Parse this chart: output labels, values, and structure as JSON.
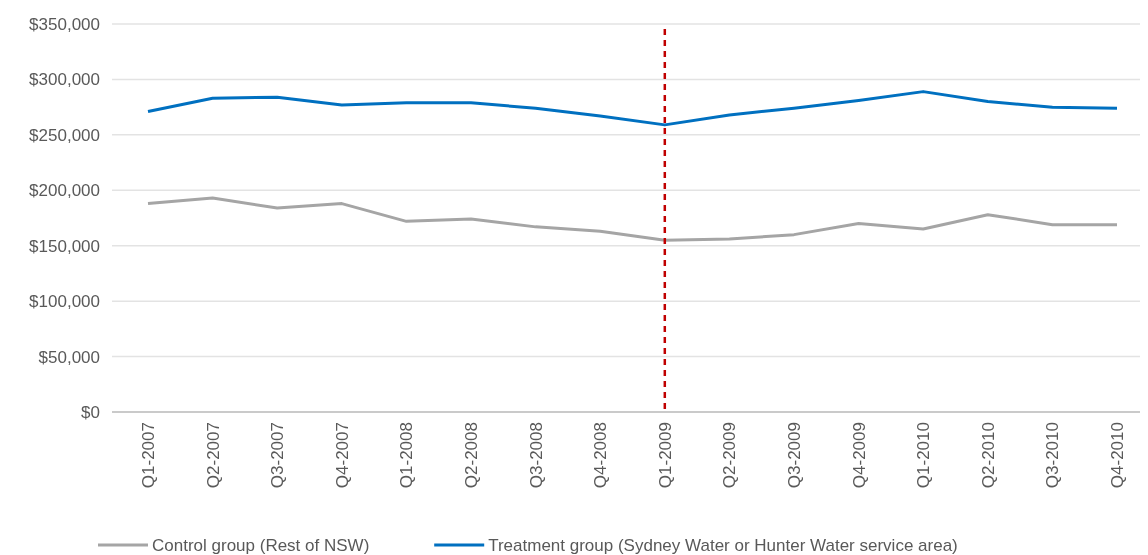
{
  "chart_data": {
    "type": "line",
    "categories": [
      "Q1-2007",
      "Q2-2007",
      "Q3-2007",
      "Q4-2007",
      "Q1-2008",
      "Q2-2008",
      "Q3-2008",
      "Q4-2008",
      "Q1-2009",
      "Q2-2009",
      "Q3-2009",
      "Q4-2009",
      "Q1-2010",
      "Q2-2010",
      "Q3-2010",
      "Q4-2010"
    ],
    "series": [
      {
        "name": "Control group (Rest of NSW)",
        "color": "#a5a5a5",
        "values": [
          188000,
          193000,
          184000,
          188000,
          172000,
          174000,
          167000,
          163000,
          155000,
          156000,
          160000,
          170000,
          165000,
          178000,
          169000,
          169000
        ]
      },
      {
        "name": "Treatment group (Sydney Water or Hunter Water service area)",
        "color": "#0070c0",
        "values": [
          271000,
          283000,
          284000,
          277000,
          279000,
          279000,
          274000,
          267000,
          259000,
          268000,
          274000,
          281000,
          289000,
          280000,
          275000,
          274000
        ]
      }
    ],
    "ylim": [
      0,
      350000
    ],
    "yticks": [
      {
        "value": 0,
        "label": "$0"
      },
      {
        "value": 50000,
        "label": "$50,000"
      },
      {
        "value": 100000,
        "label": "$100,000"
      },
      {
        "value": 150000,
        "label": "$150,000"
      },
      {
        "value": 200000,
        "label": "$200,000"
      },
      {
        "value": 250000,
        "label": "$250,000"
      },
      {
        "value": 300000,
        "label": "$300,000"
      },
      {
        "value": 350000,
        "label": "$350,000"
      }
    ],
    "ref_lines": [
      {
        "axis": "x",
        "value": "Q1-2009",
        "color": "#c00000",
        "line_style": "dashed"
      }
    ],
    "grid": "y",
    "legend": "bottom",
    "marker": "none",
    "line_style": "solid"
  }
}
